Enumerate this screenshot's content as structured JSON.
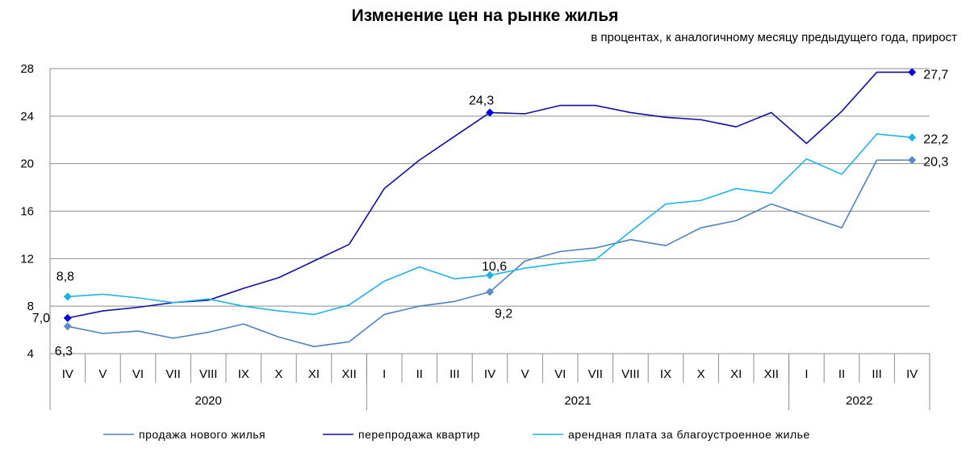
{
  "chart_data": {
    "type": "line",
    "title": "Изменение цен на рынке жилья",
    "subtitle": "в процентах,  к аналогичному месяцу предыдущего года, прирост",
    "ylim": [
      4,
      28
    ],
    "yticks": [
      4,
      8,
      12,
      16,
      20,
      24,
      28
    ],
    "grid": true,
    "legend_position": "bottom",
    "categories": [
      "IV",
      "V",
      "VI",
      "VII",
      "VIII",
      "IX",
      "X",
      "XI",
      "XII",
      "I",
      "II",
      "III",
      "IV",
      "V",
      "VI",
      "VII",
      "VIII",
      "IX",
      "X",
      "XI",
      "XII",
      "I",
      "II",
      "III",
      "IV"
    ],
    "groups": [
      {
        "label": "2020",
        "count": 9
      },
      {
        "label": "2021",
        "count": 12
      },
      {
        "label": "2022",
        "count": 4
      }
    ],
    "series": [
      {
        "name": "продажа нового жилья",
        "color": "#4F81BD",
        "marker_color": "#5B8AC6",
        "values": [
          6.3,
          5.7,
          5.9,
          5.3,
          5.8,
          6.5,
          5.4,
          4.6,
          5.0,
          7.3,
          8.0,
          8.4,
          9.2,
          11.8,
          12.6,
          12.9,
          13.6,
          13.1,
          14.6,
          15.2,
          16.6,
          15.6,
          14.6,
          20.3,
          20.3
        ],
        "labels": [
          {
            "index": 0,
            "text": "6,3"
          },
          {
            "index": 12,
            "text": "9,2"
          },
          {
            "index": 24,
            "text": "20,3"
          }
        ]
      },
      {
        "name": "перепродажа  квартир",
        "color": "#1010A0",
        "marker_color": "#0000E0",
        "values": [
          7.0,
          7.6,
          7.9,
          8.3,
          8.5,
          9.5,
          10.4,
          11.8,
          13.2,
          17.9,
          20.3,
          22.3,
          24.3,
          24.2,
          24.9,
          24.9,
          24.3,
          23.9,
          23.7,
          23.1,
          24.3,
          21.7,
          24.4,
          27.7,
          27.7
        ],
        "labels": [
          {
            "index": 0,
            "text": "7,0"
          },
          {
            "index": 12,
            "text": "24,3"
          },
          {
            "index": 24,
            "text": "27,7"
          }
        ]
      },
      {
        "name": "арендная плата за благоустроенное  жилье",
        "color": "#1FB2E6",
        "marker_color": "#1FB2E6",
        "values": [
          8.8,
          9.0,
          8.7,
          8.3,
          8.6,
          8.0,
          7.6,
          7.3,
          8.1,
          10.1,
          11.3,
          10.3,
          10.6,
          11.2,
          11.6,
          11.9,
          14.3,
          16.6,
          16.9,
          17.9,
          17.5,
          20.4,
          19.1,
          22.5,
          22.2
        ],
        "labels": [
          {
            "index": 0,
            "text": "8,8"
          },
          {
            "index": 12,
            "text": "10,6"
          },
          {
            "index": 24,
            "text": "22,2"
          }
        ]
      }
    ]
  }
}
